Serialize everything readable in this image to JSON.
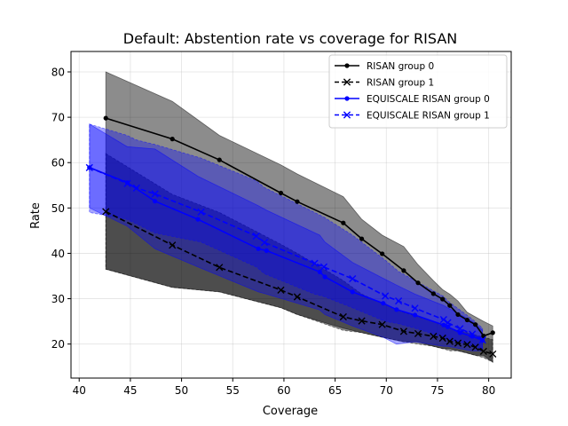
{
  "chart_data": {
    "type": "line",
    "title": "Default: Abstention rate vs coverage for RISAN",
    "xlabel": "Coverage",
    "ylabel": "Rate",
    "xlim": [
      39.2,
      82.2
    ],
    "ylim": [
      12.5,
      84.5
    ],
    "xticks": [
      40,
      45,
      50,
      55,
      60,
      65,
      70,
      75,
      80
    ],
    "yticks": [
      20,
      30,
      40,
      50,
      60,
      70,
      80
    ],
    "grid": true,
    "legend_position": "top-right",
    "series": [
      {
        "name": "RISAN group 0",
        "color": "#000000",
        "marker": "dot",
        "linestyle": "solid",
        "x": [
          42.6,
          49.1,
          53.7,
          59.7,
          61.3,
          65.8,
          67.6,
          69.6,
          71.7,
          73.1,
          74.6,
          75.5,
          76.2,
          77.0,
          77.9,
          78.7,
          79.5,
          80.4
        ],
        "y": [
          69.8,
          65.2,
          60.6,
          53.3,
          51.4,
          46.7,
          43.2,
          39.9,
          36.2,
          33.5,
          31.1,
          29.9,
          28.5,
          26.5,
          25.3,
          24.3,
          21.8,
          22.5
        ],
        "band_upper": [
          80.0,
          73.5,
          66.0,
          59.5,
          57.5,
          52.5,
          47.5,
          44.0,
          41.5,
          37.5,
          34.0,
          32.0,
          31.0,
          29.5,
          27.0,
          26.0,
          25.0,
          24.0
        ],
        "band_lower": [
          36.5,
          32.5,
          31.5,
          28.0,
          26.5,
          23.5,
          22.5,
          21.5,
          20.5,
          20.5,
          19.5,
          19.0,
          19.0,
          18.5,
          18.0,
          17.5,
          17.5,
          16.0
        ]
      },
      {
        "name": "RISAN group 1",
        "color": "#000000",
        "marker": "x",
        "linestyle": "dashed",
        "x": [
          42.6,
          49.1,
          53.7,
          59.7,
          61.3,
          65.8,
          67.6,
          69.6,
          71.7,
          73.1,
          74.6,
          75.5,
          76.2,
          77.0,
          77.9,
          78.7,
          79.5,
          80.4
        ],
        "y": [
          49.2,
          41.8,
          36.9,
          31.9,
          30.4,
          26.0,
          25.1,
          24.3,
          22.8,
          22.3,
          21.7,
          21.3,
          20.6,
          20.2,
          19.9,
          19.3,
          18.4,
          17.8
        ],
        "band_upper": [
          62.0,
          53.0,
          49.0,
          42.0,
          40.0,
          34.0,
          31.0,
          29.0,
          27.0,
          26.0,
          25.0,
          24.0,
          23.5,
          23.0,
          22.5,
          22.0,
          21.5,
          21.0
        ],
        "band_lower": [
          36.5,
          32.5,
          31.5,
          28.0,
          26.5,
          23.0,
          22.5,
          21.5,
          20.5,
          20.0,
          19.5,
          19.0,
          18.5,
          18.5,
          18.0,
          17.5,
          17.0,
          16.0
        ]
      },
      {
        "name": "EQUISCALE RISAN group 0",
        "color": "#0000ff",
        "marker": "dot",
        "linestyle": "solid",
        "x": [
          41.0,
          44.7,
          47.4,
          51.6,
          57.5,
          58.3,
          63.5,
          64.0,
          66.7,
          69.7,
          71.0,
          72.8,
          75.6,
          76.0,
          77.2,
          78.4,
          79.4
        ],
        "y": [
          58.9,
          55.6,
          51.5,
          47.5,
          41.0,
          40.6,
          35.9,
          34.8,
          31.5,
          29.0,
          27.6,
          26.4,
          24.2,
          23.8,
          22.5,
          21.7,
          20.8
        ],
        "band_upper": [
          68.5,
          63.5,
          63.0,
          57.0,
          50.5,
          49.5,
          44.0,
          42.5,
          38.0,
          34.5,
          33.0,
          31.0,
          28.5,
          28.0,
          26.5,
          25.0,
          23.0
        ],
        "band_lower": [
          50.0,
          46.0,
          41.0,
          37.0,
          31.5,
          31.0,
          27.5,
          26.5,
          24.0,
          21.5,
          20.0,
          20.5,
          19.5,
          19.5,
          19.0,
          18.5,
          18.5
        ]
      },
      {
        "name": "EQUISCALE RISAN group 1",
        "color": "#0000ff",
        "marker": "x",
        "linestyle": "dashed",
        "x": [
          41.0,
          44.7,
          45.6,
          47.4,
          51.9,
          57.3,
          58.1,
          63.0,
          63.9,
          66.7,
          69.9,
          71.2,
          72.8,
          75.6,
          76.0,
          77.2,
          78.4,
          79.4
        ],
        "y": [
          58.9,
          55.4,
          54.4,
          53.1,
          49.1,
          43.8,
          42.4,
          37.8,
          37.0,
          34.4,
          30.6,
          29.5,
          27.9,
          25.4,
          24.7,
          23.4,
          22.2,
          20.9
        ],
        "band_upper": [
          68.5,
          66.0,
          65.0,
          64.0,
          61.0,
          56.0,
          54.5,
          49.0,
          48.0,
          44.0,
          38.5,
          36.0,
          34.0,
          30.5,
          29.5,
          27.5,
          25.5,
          23.5
        ],
        "band_lower": [
          49.0,
          47.5,
          46.5,
          44.5,
          42.5,
          37.0,
          35.5,
          31.0,
          30.5,
          28.0,
          25.0,
          24.5,
          23.5,
          21.5,
          21.0,
          20.5,
          19.5,
          19.0
        ]
      }
    ]
  }
}
